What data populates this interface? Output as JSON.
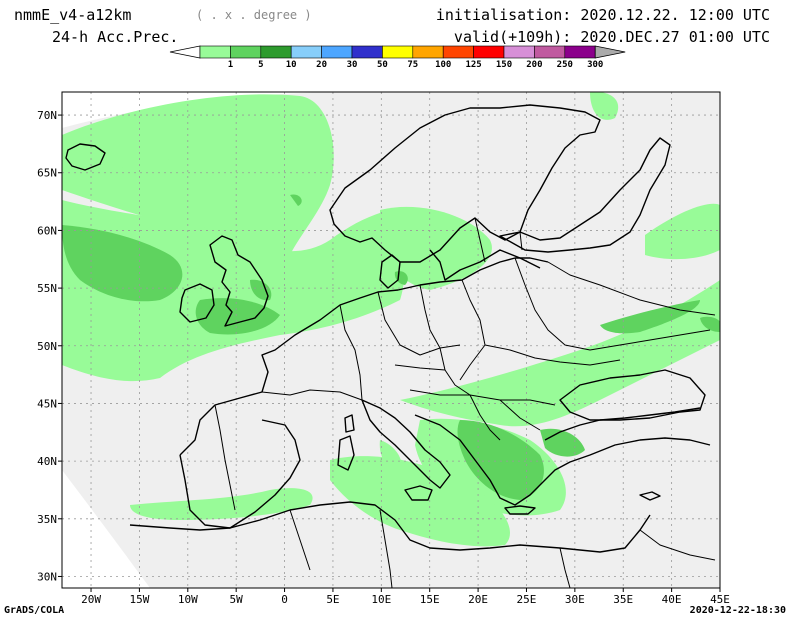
{
  "header": {
    "model": "nmmE_v4-a12km",
    "units": "( . x . degree )",
    "field": "24-h Acc.Prec.",
    "initialisation": "initialisation: 2020.12.22.  12:00 UTC",
    "valid": "valid(+109h): 2020.DEC.27 01:00 UTC"
  },
  "colorbar": {
    "levels": [
      "1",
      "5",
      "10",
      "20",
      "30",
      "50",
      "75",
      "100",
      "125",
      "150",
      "200",
      "250",
      "300"
    ],
    "colors": [
      "#98fb98",
      "#5fd35f",
      "#2e9b2e",
      "#87cefa",
      "#4da6ff",
      "#3030cc",
      "#ffff00",
      "#ffa500",
      "#ff4500",
      "#ff0000",
      "#d78fd7",
      "#c05aa0",
      "#8b008b"
    ],
    "below_color": "#ffffff",
    "above_color": "#aaaaaa"
  },
  "map": {
    "region": "Europe",
    "projection": "lat-lon",
    "lon_range": [
      -23,
      45
    ],
    "lat_range": [
      29,
      72
    ],
    "background_color": "#efefef",
    "gridlines": true,
    "lat_labels": [
      "30N",
      "35N",
      "40N",
      "45N",
      "50N",
      "55N",
      "60N",
      "65N",
      "70N"
    ],
    "lon_labels": [
      "20W",
      "15W",
      "10W",
      "5W",
      "0",
      "5E",
      "10E",
      "15E",
      "20E",
      "25E",
      "30E",
      "35E",
      "40E",
      "45E"
    ]
  },
  "footer": {
    "left": "GrADS/COLA",
    "right": "2020-12-22-18:30"
  }
}
